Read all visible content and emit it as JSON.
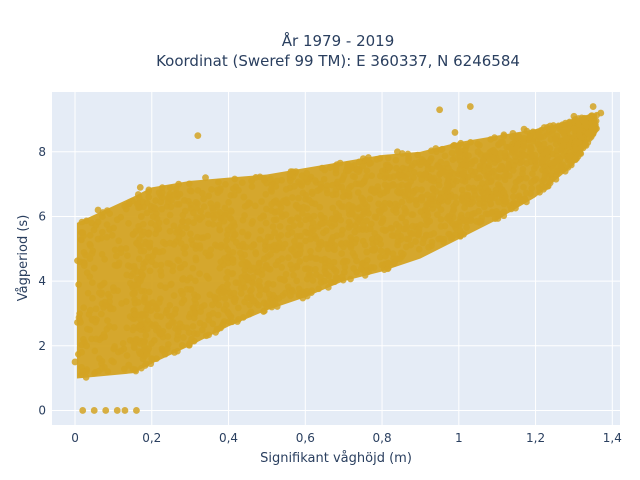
{
  "chart_data": {
    "type": "scatter",
    "title_line1": "År 1979 - 2019",
    "title_line2": "Koordinat (Sweref 99 TM): E 360337, N 6246584",
    "xlabel": "Signifikant våghöjd (m)",
    "ylabel": "Vågperiod (s)",
    "xlim": [
      -0.06,
      1.42
    ],
    "ylim": [
      -0.45,
      9.85
    ],
    "x_ticks": [
      {
        "value": 0,
        "label": "0"
      },
      {
        "value": 0.2,
        "label": "0,2"
      },
      {
        "value": 0.4,
        "label": "0,4"
      },
      {
        "value": 0.6,
        "label": "0,6"
      },
      {
        "value": 0.8,
        "label": "0,8"
      },
      {
        "value": 1.0,
        "label": "1"
      },
      {
        "value": 1.2,
        "label": "1,2"
      },
      {
        "value": 1.4,
        "label": "1,4"
      }
    ],
    "y_ticks": [
      {
        "value": 0,
        "label": "0"
      },
      {
        "value": 2,
        "label": "2"
      },
      {
        "value": 4,
        "label": "4"
      },
      {
        "value": 6,
        "label": "6"
      },
      {
        "value": 8,
        "label": "8"
      }
    ],
    "grid": true,
    "legend": "none",
    "colors": {
      "marker": "#d4a322",
      "plot_bg": "#e5ecf6",
      "grid": "#ffffff"
    },
    "points": [
      [
        0.02,
        0.0
      ],
      [
        0.05,
        0.0
      ],
      [
        0.08,
        0.0
      ],
      [
        0.11,
        0.0
      ],
      [
        0.13,
        0.0
      ],
      [
        0.16,
        0.0
      ],
      [
        0.0,
        1.5
      ],
      [
        0.02,
        1.2
      ],
      [
        0.03,
        2.0
      ],
      [
        0.04,
        3.1
      ],
      [
        0.05,
        4.4
      ],
      [
        0.06,
        5.3
      ],
      [
        0.07,
        1.3
      ],
      [
        0.09,
        2.6
      ],
      [
        0.1,
        3.8
      ],
      [
        0.12,
        5.0
      ],
      [
        0.14,
        1.4
      ],
      [
        0.16,
        2.2
      ],
      [
        0.02,
        5.5
      ],
      [
        0.04,
        5.1
      ],
      [
        0.06,
        6.2
      ],
      [
        0.09,
        5.6
      ],
      [
        0.11,
        5.9
      ],
      [
        0.14,
        6.4
      ],
      [
        0.17,
        6.9
      ],
      [
        0.19,
        3.2
      ],
      [
        0.21,
        4.5
      ],
      [
        0.23,
        5.2
      ],
      [
        0.25,
        6.3
      ],
      [
        0.27,
        7.0
      ],
      [
        0.2,
        1.6
      ],
      [
        0.22,
        2.4
      ],
      [
        0.24,
        1.9
      ],
      [
        0.26,
        3.0
      ],
      [
        0.28,
        3.6
      ],
      [
        0.3,
        4.1
      ],
      [
        0.3,
        6.8
      ],
      [
        0.32,
        8.5
      ],
      [
        0.34,
        7.2
      ],
      [
        0.36,
        6.2
      ],
      [
        0.38,
        4.6
      ],
      [
        0.4,
        3.0
      ],
      [
        0.42,
        5.2
      ],
      [
        0.44,
        6.6
      ],
      [
        0.46,
        7.1
      ],
      [
        0.48,
        4.0
      ],
      [
        0.5,
        3.3
      ],
      [
        0.52,
        5.5
      ],
      [
        0.54,
        6.0
      ],
      [
        0.56,
        7.3
      ],
      [
        0.58,
        4.8
      ],
      [
        0.6,
        3.6
      ],
      [
        0.62,
        5.8
      ],
      [
        0.64,
        7.0
      ],
      [
        0.66,
        5.0
      ],
      [
        0.68,
        4.3
      ],
      [
        0.7,
        6.3
      ],
      [
        0.72,
        7.5
      ],
      [
        0.74,
        5.6
      ],
      [
        0.76,
        4.9
      ],
      [
        0.78,
        6.8
      ],
      [
        0.8,
        4.5
      ],
      [
        0.82,
        7.2
      ],
      [
        0.84,
        8.0
      ],
      [
        0.86,
        6.1
      ],
      [
        0.88,
        5.7
      ],
      [
        0.9,
        7.6
      ],
      [
        0.92,
        6.4
      ],
      [
        0.94,
        8.1
      ],
      [
        0.95,
        9.3
      ],
      [
        0.97,
        7.0
      ],
      [
        0.99,
        8.6
      ],
      [
        1.01,
        7.3
      ],
      [
        1.03,
        9.4
      ],
      [
        1.05,
        8.0
      ],
      [
        1.07,
        6.9
      ],
      [
        1.09,
        7.8
      ],
      [
        1.11,
        8.3
      ],
      [
        1.13,
        7.6
      ],
      [
        1.15,
        8.1
      ],
      [
        1.17,
        8.7
      ],
      [
        1.19,
        7.9
      ],
      [
        1.21,
        8.5
      ],
      [
        1.23,
        8.0
      ],
      [
        1.26,
        8.8
      ],
      [
        1.28,
        8.4
      ],
      [
        1.3,
        9.1
      ],
      [
        1.33,
        8.9
      ],
      [
        1.35,
        9.4
      ],
      [
        1.37,
        9.2
      ]
    ],
    "bands": [
      [
        0.005,
        0.99,
        5.8
      ],
      [
        0.15,
        1.15,
        6.6
      ],
      [
        0.2,
        1.45,
        6.9
      ],
      [
        0.3,
        2.0,
        7.1
      ],
      [
        0.4,
        2.6,
        7.2
      ],
      [
        0.5,
        3.1,
        7.3
      ],
      [
        0.6,
        3.5,
        7.5
      ],
      [
        0.7,
        4.0,
        7.7
      ],
      [
        0.8,
        4.3,
        7.9
      ],
      [
        0.9,
        4.7,
        8.0
      ],
      [
        1.0,
        5.3,
        8.3
      ],
      [
        1.1,
        5.9,
        8.5
      ],
      [
        1.2,
        6.6,
        8.7
      ],
      [
        1.3,
        7.6,
        9.0
      ],
      [
        1.36,
        8.7,
        9.2
      ]
    ]
  }
}
